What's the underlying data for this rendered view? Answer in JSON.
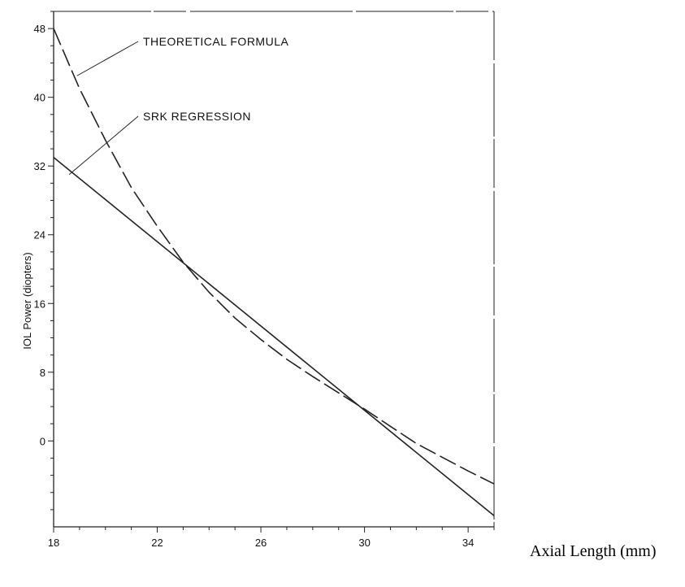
{
  "chart_data": {
    "type": "line",
    "title": "",
    "xlabel": "Axial Length (mm)",
    "ylabel": "IOL Power (diopters)",
    "xlim": [
      18,
      35
    ],
    "ylim": [
      -10,
      50
    ],
    "x_ticks": [
      18,
      22,
      26,
      30,
      34
    ],
    "y_ticks": [
      0,
      8,
      16,
      24,
      32,
      40,
      48
    ],
    "grid": false,
    "legend": "none",
    "series": [
      {
        "style": "dashed",
        "color": "#222222",
        "x": [
          18,
          19,
          20,
          21,
          22,
          23,
          24,
          25,
          26,
          27,
          28,
          29,
          30,
          31,
          32,
          33,
          34,
          35
        ],
        "y": [
          48,
          41,
          35,
          29.5,
          25,
          20.8,
          17.3,
          14.3,
          11.8,
          9.5,
          7.5,
          5.6,
          3.7,
          1.7,
          -0.3,
          -1.9,
          -3.5,
          -5
        ]
      },
      {
        "style": "solid",
        "color": "#222222",
        "x": [
          18,
          35
        ],
        "y": [
          33,
          -8.7
        ]
      }
    ],
    "annotations": [
      {
        "text": "THEORETICAL FORMULA",
        "target_x": 18.9,
        "target_y": 42.5
      },
      {
        "text": "SRK REGRESSION",
        "target_x": 18.6,
        "target_y": 31
      }
    ]
  }
}
